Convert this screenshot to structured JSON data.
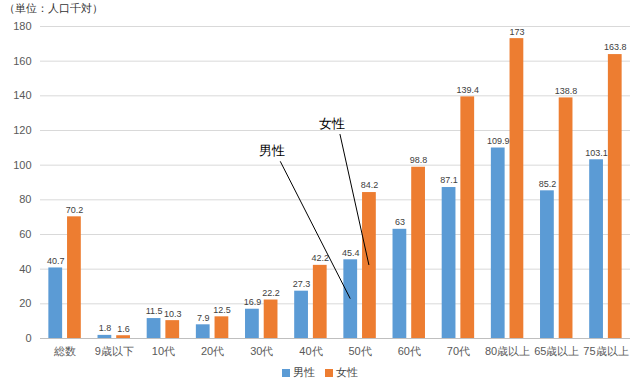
{
  "chart_data": {
    "type": "bar",
    "y_label": "（単位：人口千対）",
    "categories": [
      "総数",
      "9歳以下",
      "10代",
      "20代",
      "30代",
      "40代",
      "50代",
      "60代",
      "70代",
      "80歳以上",
      "65歳以上",
      "75歳以上"
    ],
    "series": [
      {
        "name": "男性",
        "color": "#5b9bd5",
        "values": [
          40.7,
          1.8,
          11.5,
          7.9,
          16.9,
          27.3,
          45.4,
          63,
          87.1,
          109.9,
          85.2,
          103.1
        ]
      },
      {
        "name": "女性",
        "color": "#ed7d31",
        "values": [
          70.2,
          1.6,
          10.3,
          12.5,
          22.2,
          42.2,
          84.2,
          98.8,
          139.4,
          173,
          138.8,
          163.8
        ]
      }
    ],
    "ylim": [
      0,
      180
    ],
    "yticks": [
      0,
      20,
      40,
      60,
      80,
      100,
      120,
      140,
      160,
      180
    ],
    "grid": true,
    "data_labels": true,
    "legend": "bottom",
    "annotations": [
      {
        "text": "男性",
        "series": "男性",
        "category": "50代"
      },
      {
        "text": "女性",
        "series": "女性",
        "category": "50代"
      }
    ]
  }
}
